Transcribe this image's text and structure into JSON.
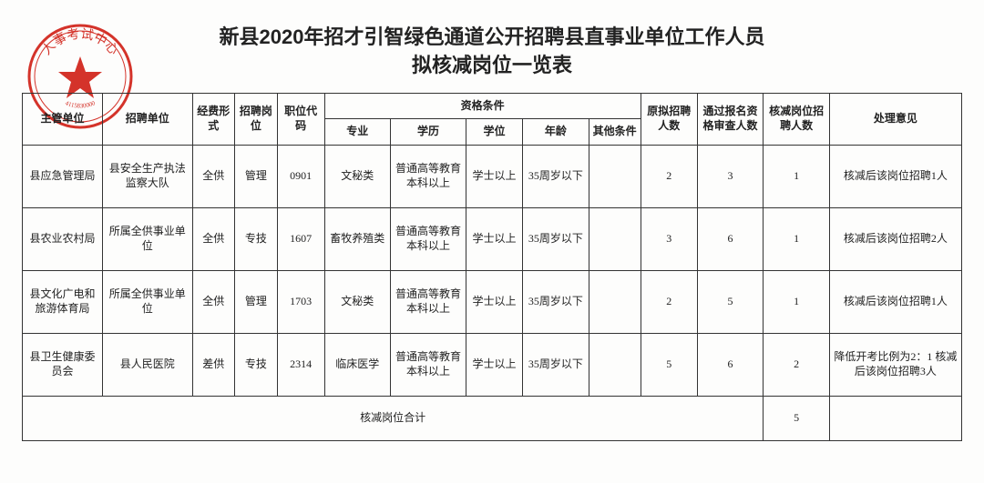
{
  "title_line1": "新县2020年招才引智绿色通道公开招聘县直事业单位工作人员",
  "title_line2": "拟核减岗位一览表",
  "stamp": {
    "outer_color": "#d4332a",
    "inner_color": "#e24a3f",
    "text": "人事考试中心",
    "code": "4115830000"
  },
  "headers": {
    "dept": "主管单位",
    "unit": "招聘单位",
    "fund": "经费形式",
    "post": "招聘岗位",
    "code": "职位代码",
    "qual_group": "资格条件",
    "major": "专业",
    "edu": "学历",
    "degree": "学位",
    "age": "年龄",
    "other": "其他条件",
    "orig": "原拟招聘人数",
    "pass": "通过报名资格审查人数",
    "cut": "核减岗位招聘人数",
    "note": "处理意见"
  },
  "rows": [
    {
      "dept": "县应急管理局",
      "unit": "县安全生产执法监察大队",
      "fund": "全供",
      "post": "管理",
      "code": "0901",
      "major": "文秘类",
      "edu": "普通高等教育本科以上",
      "degree": "学士以上",
      "age": "35周岁以下",
      "other": "",
      "orig": "2",
      "pass": "3",
      "cut": "1",
      "note": "核减后该岗位招聘1人"
    },
    {
      "dept": "县农业农村局",
      "unit": "所属全供事业单位",
      "fund": "全供",
      "post": "专技",
      "code": "1607",
      "major": "畜牧养殖类",
      "edu": "普通高等教育本科以上",
      "degree": "学士以上",
      "age": "35周岁以下",
      "other": "",
      "orig": "3",
      "pass": "6",
      "cut": "1",
      "note": "核减后该岗位招聘2人"
    },
    {
      "dept": "县文化广电和旅游体育局",
      "unit": "所属全供事业单位",
      "fund": "全供",
      "post": "管理",
      "code": "1703",
      "major": "文秘类",
      "edu": "普通高等教育本科以上",
      "degree": "学士以上",
      "age": "35周岁以下",
      "other": "",
      "orig": "2",
      "pass": "5",
      "cut": "1",
      "note": "核减后该岗位招聘1人"
    },
    {
      "dept": "县卫生健康委员会",
      "unit": "县人民医院",
      "fund": "差供",
      "post": "专技",
      "code": "2314",
      "major": "临床医学",
      "edu": "普通高等教育本科以上",
      "degree": "学士以上",
      "age": "35周岁以下",
      "other": "",
      "orig": "5",
      "pass": "6",
      "cut": "2",
      "note": "降低开考比例为2：1 核减后该岗位招聘3人"
    }
  ],
  "footer": {
    "label": "核减岗位合计",
    "total": "5"
  }
}
